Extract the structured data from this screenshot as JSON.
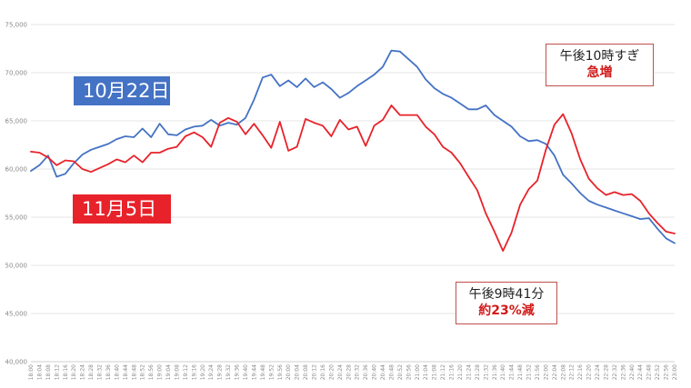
{
  "chart_data": {
    "type": "line",
    "y_ticks": [
      "75,000",
      "70,000",
      "65,000",
      "60,000",
      "55,000",
      "50,000",
      "45,000",
      "40,000"
    ],
    "ylim": [
      40000,
      75000
    ],
    "x_ticks": [
      "18:00",
      "18:04",
      "18:08",
      "18:12",
      "18:16",
      "18:20",
      "18:24",
      "18:28",
      "18:32",
      "18:36",
      "18:40",
      "18:44",
      "18:48",
      "18:52",
      "18:56",
      "19:00",
      "19:04",
      "19:08",
      "19:12",
      "19:16",
      "19:20",
      "19:24",
      "19:28",
      "19:32",
      "19:36",
      "19:40",
      "19:44",
      "19:48",
      "19:52",
      "19:56",
      "20:00",
      "20:04",
      "20:08",
      "20:12",
      "20:16",
      "20:20",
      "20:24",
      "20:28",
      "20:32",
      "20:36",
      "20:40",
      "20:44",
      "20:48",
      "20:52",
      "20:56",
      "21:00",
      "21:04",
      "21:08",
      "21:12",
      "21:16",
      "21:20",
      "21:24",
      "21:28",
      "21:32",
      "21:36",
      "21:40",
      "21:44",
      "21:48",
      "21:52",
      "21:56",
      "22:00",
      "22:04",
      "22:08",
      "22:12",
      "22:16",
      "22:20",
      "22:24",
      "22:28",
      "22:32",
      "22:36",
      "22:40",
      "22:44",
      "22:48",
      "22:52",
      "22:56",
      "23:00"
    ],
    "x_range_minutes": [
      0,
      300
    ],
    "grid": "horizontal",
    "series": [
      {
        "name": "10月22日",
        "color": "#4472c4",
        "points": [
          [
            0,
            59800
          ],
          [
            4,
            60400
          ],
          [
            8,
            61400
          ],
          [
            12,
            59200
          ],
          [
            16,
            59500
          ],
          [
            20,
            60600
          ],
          [
            24,
            61500
          ],
          [
            28,
            62000
          ],
          [
            32,
            62300
          ],
          [
            36,
            62600
          ],
          [
            40,
            63100
          ],
          [
            44,
            63400
          ],
          [
            48,
            63300
          ],
          [
            52,
            64200
          ],
          [
            56,
            63300
          ],
          [
            60,
            64700
          ],
          [
            64,
            63600
          ],
          [
            68,
            63500
          ],
          [
            72,
            64100
          ],
          [
            76,
            64400
          ],
          [
            80,
            64500
          ],
          [
            84,
            65100
          ],
          [
            88,
            64500
          ],
          [
            92,
            64800
          ],
          [
            96,
            64600
          ],
          [
            100,
            65300
          ],
          [
            104,
            67200
          ],
          [
            108,
            69500
          ],
          [
            112,
            69800
          ],
          [
            116,
            68600
          ],
          [
            120,
            69200
          ],
          [
            124,
            68500
          ],
          [
            128,
            69400
          ],
          [
            132,
            68500
          ],
          [
            136,
            69000
          ],
          [
            140,
            68300
          ],
          [
            144,
            67400
          ],
          [
            148,
            67900
          ],
          [
            152,
            68600
          ],
          [
            156,
            69200
          ],
          [
            160,
            69800
          ],
          [
            164,
            70600
          ],
          [
            168,
            72300
          ],
          [
            172,
            72200
          ],
          [
            176,
            71400
          ],
          [
            180,
            70600
          ],
          [
            184,
            69300
          ],
          [
            188,
            68400
          ],
          [
            192,
            67800
          ],
          [
            196,
            67400
          ],
          [
            200,
            66800
          ],
          [
            204,
            66200
          ],
          [
            208,
            66200
          ],
          [
            212,
            66600
          ],
          [
            216,
            65600
          ],
          [
            220,
            65000
          ],
          [
            224,
            64400
          ],
          [
            228,
            63400
          ],
          [
            232,
            62900
          ],
          [
            236,
            63000
          ],
          [
            240,
            62600
          ],
          [
            244,
            61400
          ],
          [
            248,
            59400
          ],
          [
            252,
            58500
          ],
          [
            256,
            57500
          ],
          [
            260,
            56700
          ],
          [
            264,
            56300
          ],
          [
            268,
            56000
          ],
          [
            272,
            55700
          ],
          [
            276,
            55400
          ],
          [
            280,
            55100
          ],
          [
            284,
            54800
          ],
          [
            288,
            54900
          ],
          [
            292,
            53800
          ],
          [
            296,
            52800
          ],
          [
            300,
            52300
          ]
        ]
      },
      {
        "name": "11月5日",
        "color": "#e8222a",
        "points": [
          [
            0,
            61800
          ],
          [
            4,
            61700
          ],
          [
            8,
            61200
          ],
          [
            12,
            60400
          ],
          [
            16,
            60900
          ],
          [
            20,
            60800
          ],
          [
            24,
            60000
          ],
          [
            28,
            59700
          ],
          [
            32,
            60100
          ],
          [
            36,
            60500
          ],
          [
            40,
            61000
          ],
          [
            44,
            60700
          ],
          [
            48,
            61400
          ],
          [
            52,
            60700
          ],
          [
            56,
            61700
          ],
          [
            60,
            61700
          ],
          [
            64,
            62100
          ],
          [
            68,
            62300
          ],
          [
            72,
            63400
          ],
          [
            76,
            63800
          ],
          [
            80,
            63300
          ],
          [
            84,
            62300
          ],
          [
            88,
            64800
          ],
          [
            92,
            65300
          ],
          [
            96,
            64900
          ],
          [
            100,
            63600
          ],
          [
            104,
            64700
          ],
          [
            108,
            63500
          ],
          [
            112,
            62200
          ],
          [
            116,
            64900
          ],
          [
            120,
            61900
          ],
          [
            124,
            62300
          ],
          [
            128,
            65200
          ],
          [
            132,
            64800
          ],
          [
            136,
            64500
          ],
          [
            140,
            63400
          ],
          [
            144,
            65100
          ],
          [
            148,
            64100
          ],
          [
            152,
            64400
          ],
          [
            156,
            62400
          ],
          [
            160,
            64500
          ],
          [
            164,
            65100
          ],
          [
            168,
            66600
          ],
          [
            172,
            65600
          ],
          [
            176,
            65600
          ],
          [
            180,
            65600
          ],
          [
            184,
            64400
          ],
          [
            188,
            63600
          ],
          [
            192,
            62300
          ],
          [
            196,
            61700
          ],
          [
            200,
            60600
          ],
          [
            204,
            59200
          ],
          [
            208,
            57800
          ],
          [
            212,
            55400
          ],
          [
            216,
            53500
          ],
          [
            220,
            51500
          ],
          [
            224,
            53400
          ],
          [
            228,
            56300
          ],
          [
            232,
            57900
          ],
          [
            236,
            58800
          ],
          [
            240,
            62000
          ],
          [
            244,
            64600
          ],
          [
            248,
            65700
          ],
          [
            252,
            63700
          ],
          [
            256,
            61000
          ],
          [
            260,
            59000
          ],
          [
            264,
            58000
          ],
          [
            268,
            57300
          ],
          [
            272,
            57600
          ],
          [
            276,
            57300
          ],
          [
            280,
            57400
          ],
          [
            284,
            56700
          ],
          [
            288,
            55400
          ],
          [
            292,
            54400
          ],
          [
            296,
            53500
          ],
          [
            300,
            53300
          ]
        ]
      }
    ]
  },
  "legend": {
    "oct": "10月22日",
    "nov": "11月5日"
  },
  "annotations": {
    "surge_line1": "午後10時すぎ",
    "surge_line2": "急増",
    "drop_line1": "午後9時41分",
    "drop_line2": "約23%減"
  }
}
